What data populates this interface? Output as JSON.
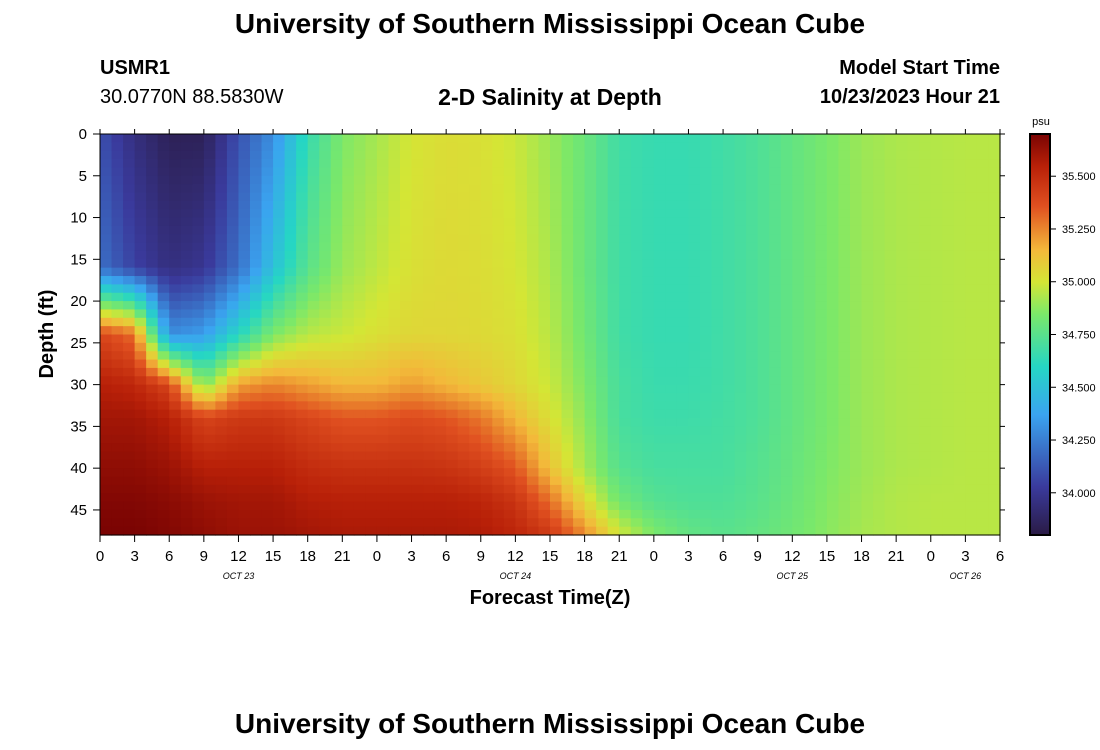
{
  "page": {
    "title": "University of Southern Mississippi Ocean Cube",
    "title_repeat": "University of Southern Mississippi Ocean Cube"
  },
  "header": {
    "station": "USMR1",
    "coords": "30.0770N  88.5830W",
    "plot_title": "2-D Salinity at Depth",
    "model_start_label": "Model Start Time",
    "model_start_value": "10/23/2023 Hour 21"
  },
  "chart_data": {
    "type": "heatmap",
    "title": "2-D Salinity at Depth",
    "xlabel": "Forecast Time(Z)",
    "ylabel": "Depth (ft)",
    "x_ticks": [
      "0",
      "3",
      "6",
      "9",
      "12",
      "15",
      "18",
      "21",
      "0",
      "3",
      "6",
      "9",
      "12",
      "15",
      "18",
      "21",
      "0",
      "3",
      "6",
      "9",
      "12",
      "15",
      "18",
      "21",
      "0",
      "3",
      "6"
    ],
    "x_range_hours": [
      0,
      78
    ],
    "day_labels": [
      {
        "label": "OCT 23",
        "hour": 12
      },
      {
        "label": "OCT 24",
        "hour": 36
      },
      {
        "label": "OCT 25",
        "hour": 60
      },
      {
        "label": "OCT 26",
        "hour": 75
      }
    ],
    "y_ticks": [
      "0",
      "5",
      "10",
      "15",
      "20",
      "25",
      "30",
      "35",
      "40",
      "45"
    ],
    "y_range_ft": [
      0,
      48
    ],
    "colorbar": {
      "unit": "psu",
      "min": 33.8,
      "max": 35.7,
      "ticks": [
        "35.500",
        "35.250",
        "35.000",
        "34.750",
        "34.500",
        "34.250",
        "34.000"
      ]
    },
    "depth_profile_columns_ft": [
      0,
      16,
      24,
      30,
      34,
      40,
      44,
      48
    ],
    "salinity_grid_psu": [
      {
        "hour": 0,
        "values": [
          34.1,
          34.2,
          35.4,
          35.55,
          35.6,
          35.65,
          35.68,
          35.7
        ]
      },
      {
        "hour": 3,
        "values": [
          33.95,
          34.05,
          35.3,
          35.52,
          35.6,
          35.65,
          35.68,
          35.7
        ]
      },
      {
        "hour": 6,
        "values": [
          33.85,
          33.95,
          34.3,
          35.4,
          35.55,
          35.62,
          35.66,
          35.68
        ]
      },
      {
        "hour": 9,
        "values": [
          33.85,
          34.0,
          34.35,
          34.85,
          35.4,
          35.55,
          35.62,
          35.65
        ]
      },
      {
        "hour": 12,
        "values": [
          34.1,
          34.2,
          34.6,
          35.2,
          35.45,
          35.55,
          35.6,
          35.62
        ]
      },
      {
        "hour": 15,
        "values": [
          34.3,
          34.5,
          34.85,
          35.25,
          35.45,
          35.55,
          35.6,
          35.62
        ]
      },
      {
        "hour": 18,
        "values": [
          34.65,
          34.75,
          34.95,
          35.2,
          35.4,
          35.5,
          35.56,
          35.6
        ]
      },
      {
        "hour": 21,
        "values": [
          34.85,
          34.9,
          34.98,
          35.15,
          35.35,
          35.48,
          35.55,
          35.58
        ]
      },
      {
        "hour": 24,
        "values": [
          34.92,
          34.96,
          35.02,
          35.15,
          35.35,
          35.48,
          35.55,
          35.58
        ]
      },
      {
        "hour": 27,
        "values": [
          35.0,
          35.02,
          35.05,
          35.2,
          35.38,
          35.48,
          35.55,
          35.58
        ]
      },
      {
        "hour": 30,
        "values": [
          35.03,
          35.04,
          35.05,
          35.15,
          35.35,
          35.47,
          35.55,
          35.58
        ]
      },
      {
        "hour": 33,
        "values": [
          35.02,
          35.03,
          35.04,
          35.1,
          35.28,
          35.43,
          35.53,
          35.57
        ]
      },
      {
        "hour": 36,
        "values": [
          34.98,
          35.0,
          35.02,
          35.05,
          35.15,
          35.35,
          35.47,
          35.53
        ]
      },
      {
        "hour": 39,
        "values": [
          34.9,
          34.93,
          34.95,
          34.98,
          35.02,
          35.12,
          35.3,
          35.45
        ]
      },
      {
        "hour": 42,
        "values": [
          34.8,
          34.8,
          34.82,
          34.85,
          34.88,
          34.92,
          35.05,
          35.25
        ]
      },
      {
        "hour": 45,
        "values": [
          34.68,
          34.68,
          34.68,
          34.7,
          34.7,
          34.74,
          34.82,
          35.0
        ]
      },
      {
        "hour": 48,
        "values": [
          34.65,
          34.65,
          34.65,
          34.66,
          34.67,
          34.7,
          34.74,
          34.85
        ]
      },
      {
        "hour": 51,
        "values": [
          34.65,
          34.65,
          34.65,
          34.66,
          34.67,
          34.7,
          34.72,
          34.78
        ]
      },
      {
        "hour": 54,
        "values": [
          34.68,
          34.68,
          34.68,
          34.68,
          34.69,
          34.7,
          34.72,
          34.75
        ]
      },
      {
        "hour": 57,
        "values": [
          34.72,
          34.72,
          34.72,
          34.72,
          34.72,
          34.74,
          34.75,
          34.78
        ]
      },
      {
        "hour": 60,
        "values": [
          34.78,
          34.78,
          34.78,
          34.78,
          34.78,
          34.79,
          34.8,
          34.82
        ]
      },
      {
        "hour": 63,
        "values": [
          34.84,
          34.84,
          34.84,
          34.84,
          34.84,
          34.85,
          34.86,
          34.87
        ]
      },
      {
        "hour": 66,
        "values": [
          34.9,
          34.9,
          34.9,
          34.9,
          34.9,
          34.9,
          34.91,
          34.92
        ]
      },
      {
        "hour": 69,
        "values": [
          34.93,
          34.93,
          34.93,
          34.93,
          34.93,
          34.93,
          34.94,
          34.94
        ]
      },
      {
        "hour": 72,
        "values": [
          34.94,
          34.94,
          34.94,
          34.94,
          34.94,
          34.94,
          34.95,
          34.95
        ]
      },
      {
        "hour": 75,
        "values": [
          34.95,
          34.95,
          34.95,
          34.95,
          34.95,
          34.95,
          34.95,
          34.95
        ]
      },
      {
        "hour": 78,
        "values": [
          34.95,
          34.95,
          34.95,
          34.95,
          34.95,
          34.95,
          34.95,
          34.95
        ]
      }
    ]
  }
}
